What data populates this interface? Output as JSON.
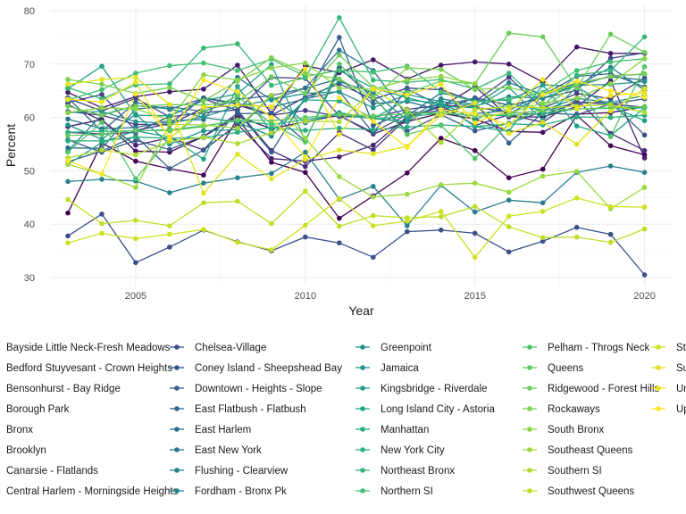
{
  "chart_data": {
    "type": "line",
    "xlabel": "Year",
    "ylabel": "Percent",
    "xlim": [
      2002.5,
      2020.8
    ],
    "ylim": [
      28.5,
      81
    ],
    "x_ticks": [
      2005,
      2010,
      2015,
      2020
    ],
    "y_ticks": [
      30,
      40,
      50,
      60,
      70,
      80
    ],
    "grid": true,
    "legend_position": "bottom",
    "x": [
      2003,
      2004,
      2005,
      2006,
      2007,
      2008,
      2009,
      2010,
      2011,
      2012,
      2013,
      2014,
      2015,
      2016,
      2017,
      2018,
      2019,
      2020
    ],
    "series": [
      {
        "name": "Bayside Little Neck-Fresh Meadows",
        "color": "#440154",
        "values": [
          42.1,
          55.2,
          51.8,
          50.4,
          49.2,
          59.8,
          51.6,
          49.7,
          41.1,
          45.3,
          49.6,
          56.1,
          53.8,
          48.7,
          50.3,
          60.4,
          54.7,
          53.0
        ]
      },
      {
        "name": "Bedford Stuyvesant - Crown Heights",
        "color": "#450a5c",
        "values": [
          58.3,
          59.6,
          53.7,
          53.5,
          56.4,
          60.2,
          57.9,
          59.2,
          60.4,
          56.9,
          59.2,
          60.8,
          59.7,
          57.4,
          57.2,
          60.6,
          60.9,
          62.0
        ]
      },
      {
        "name": "Bensonhurst - Bay Ridge",
        "color": "#461667",
        "values": [
          64.7,
          61.8,
          63.9,
          64.8,
          65.3,
          69.8,
          60.7,
          69.7,
          68.4,
          70.8,
          67.2,
          69.8,
          70.4,
          70.0,
          66.6,
          73.2,
          72.0,
          72.0
        ]
      },
      {
        "name": "Borough Park",
        "color": "#462371",
        "values": [
          62.4,
          59.4,
          54.8,
          56.2,
          53.9,
          58.7,
          52.3,
          51.8,
          52.6,
          54.8,
          60.1,
          62.0,
          65.8,
          60.1,
          60.1,
          62.0,
          66.9,
          52.4
        ]
      },
      {
        "name": "Bronx",
        "color": "#472e7c",
        "values": [
          57.2,
          56.9,
          57.2,
          60.2,
          63.5,
          61.3,
          53.8,
          50.8,
          57.1,
          53.9,
          59.9,
          62.2,
          58.5,
          60.5,
          59.1,
          63.4,
          57.0,
          53.8
        ]
      },
      {
        "name": "Brooklyn",
        "color": "#453781",
        "values": [
          61.1,
          60.4,
          58.7,
          58.6,
          61.8,
          62.3,
          60.4,
          61.3,
          60.2,
          60.0,
          61.5,
          62.3,
          61.9,
          61.0,
          60.5,
          62.8,
          62.5,
          61.9
        ]
      },
      {
        "name": "Canarsie - Flatlands",
        "color": "#433e85",
        "values": [
          62.8,
          64.3,
          57.6,
          58.8,
          63.7,
          62.6,
          60.4,
          63.8,
          66.3,
          63.4,
          65.5,
          65.2,
          63.0,
          67.5,
          61.7,
          64.5,
          63.5,
          67.4
        ]
      },
      {
        "name": "Central Harlem - Morningside Heights",
        "color": "#404688",
        "values": [
          63.6,
          61.2,
          63.6,
          60.1,
          60.9,
          61.4,
          67.5,
          67.3,
          60.3,
          57.2,
          60.5,
          61.3,
          63.7,
          62.3,
          63.6,
          65.1,
          71.1,
          72.1
        ]
      },
      {
        "name": "Chelsea-Village",
        "color": "#3c4f8a",
        "values": [
          37.8,
          41.9,
          32.8,
          35.7,
          38.9,
          36.7,
          35.0,
          37.6,
          36.5,
          33.8,
          38.6,
          38.9,
          38.3,
          34.8,
          36.8,
          39.4,
          38.1,
          30.5
        ]
      },
      {
        "name": "Coney Island - Sheepshead Bay",
        "color": "#39568c",
        "values": [
          55.8,
          53.5,
          55.7,
          54.0,
          56.5,
          60.7,
          60.8,
          55.6,
          69.3,
          63.7,
          57.4,
          60.5,
          57.5,
          58.9,
          61.1,
          62.8,
          62.9,
          56.7
        ]
      },
      {
        "name": "Downtown - Heights - Slope",
        "color": "#355f8d",
        "values": [
          51.7,
          53.7,
          56.5,
          50.4,
          53.9,
          61.0,
          53.5,
          63.8,
          75.0,
          58.5,
          61.1,
          60.6,
          62.8,
          55.2,
          60.9,
          60.5,
          62.5,
          63.5
        ]
      },
      {
        "name": "East Flatbush - Flatbush",
        "color": "#31668e",
        "values": [
          63.7,
          57.4,
          62.8,
          61.5,
          63.6,
          62.5,
          61.9,
          63.5,
          64.9,
          57.1,
          65.3,
          62.2,
          63.6,
          60.6,
          64.2,
          67.7,
          68.2,
          65.7
        ]
      },
      {
        "name": "East Harlem",
        "color": "#2e6e8e",
        "values": [
          54.3,
          54.2,
          61.6,
          62.0,
          61.1,
          63.4,
          64.1,
          65.5,
          67.2,
          62.6,
          63.0,
          61.3,
          60.7,
          61.3,
          64.5,
          66.4,
          67.6,
          67.0
        ]
      },
      {
        "name": "East New York",
        "color": "#2a768e",
        "values": [
          59.7,
          57.9,
          58.1,
          59.4,
          59.6,
          67.5,
          63.3,
          65.5,
          72.6,
          68.8,
          60.3,
          64.6,
          63.2,
          63.2,
          66.1,
          65.8,
          67.8,
          68.1
        ]
      },
      {
        "name": "Flushing - Clearview",
        "color": "#277f8e",
        "values": [
          48.0,
          48.4,
          48.1,
          45.9,
          47.7,
          48.7,
          49.5,
          53.5,
          44.7,
          47.1,
          39.7,
          47.3,
          42.3,
          44.5,
          44.0,
          49.7,
          50.9,
          49.7
        ]
      },
      {
        "name": "Fordham - Bronx Pk",
        "color": "#24868e",
        "values": [
          53.7,
          60.5,
          62.2,
          61.6,
          60.0,
          59.1,
          56.5,
          63.3,
          66.7,
          64.7,
          59.5,
          63.5,
          62.4,
          66.5,
          64.3,
          65.9,
          69.4,
          65.1
        ]
      },
      {
        "name": "Greenpoint",
        "color": "#21908d",
        "values": [
          60.9,
          61.1,
          59.2,
          58.9,
          60.1,
          62.1,
          63.3,
          64.5,
          64.8,
          61.8,
          64.3,
          63.0,
          62.1,
          63.9,
          63.6,
          66.0,
          66.2,
          66.7
        ]
      },
      {
        "name": "Jamaica",
        "color": "#1f968b",
        "values": [
          58.6,
          55.9,
          60.6,
          55.0,
          57.5,
          57.7,
          64.1,
          59.0,
          60.9,
          59.8,
          59.2,
          62.8,
          59.5,
          62.7,
          61.3,
          63.6,
          62.8,
          64.1
        ]
      },
      {
        "name": "Kingsbridge - Riverdale",
        "color": "#1fa088",
        "values": [
          65.4,
          69.6,
          60.4,
          60.3,
          63.2,
          64.4,
          69.9,
          55.7,
          68.8,
          65.5,
          63.7,
          62.1,
          61.8,
          65.6,
          59.5,
          65.7,
          62.1,
          59.4
        ]
      },
      {
        "name": "Long Island City - Astoria",
        "color": "#20a486",
        "values": [
          51.2,
          55.3,
          57.5,
          56.3,
          52.2,
          65.8,
          57.3,
          63.3,
          63.1,
          59.8,
          63.3,
          62.6,
          58.3,
          57.4,
          66.1,
          58.4,
          56.6,
          61.8
        ]
      },
      {
        "name": "Manhattan",
        "color": "#27ad81",
        "values": [
          55.6,
          55.6,
          56.3,
          56.1,
          56.2,
          57.2,
          58.1,
          57.6,
          58.0,
          57.7,
          58.2,
          58.6,
          58.3,
          58.8,
          58.6,
          60.1,
          60.0,
          60.4
        ]
      },
      {
        "name": "New York City",
        "color": "#2db27d",
        "values": [
          57.2,
          57.4,
          57.5,
          57.7,
          58.4,
          59.4,
          58.7,
          59.6,
          60.5,
          59.8,
          60.1,
          60.8,
          60.3,
          60.4,
          60.7,
          61.6,
          61.7,
          61.8
        ]
      },
      {
        "name": "Northeast Bronx",
        "color": "#37b878",
        "values": [
          65.6,
          63.5,
          66.1,
          66.3,
          73.0,
          73.8,
          66.0,
          67.4,
          78.7,
          67.0,
          66.6,
          67.1,
          65.3,
          68.3,
          62.2,
          67.9,
          68.8,
          75.1
        ]
      },
      {
        "name": "Northern SI",
        "color": "#43bf71",
        "values": [
          63.3,
          65.2,
          68.3,
          69.7,
          70.2,
          68.8,
          70.9,
          67.7,
          68.8,
          68.5,
          69.6,
          64.8,
          62.9,
          63.4,
          64.7,
          68.8,
          70.4,
          71.0
        ]
      },
      {
        "name": "Pelham - Throgs Neck",
        "color": "#52c569",
        "values": [
          53.5,
          59.1,
          48.5,
          56.1,
          61.1,
          64.0,
          58.8,
          55.4,
          70.0,
          63.9,
          56.8,
          58.5,
          52.3,
          58.8,
          61.8,
          66.2,
          56.4,
          69.5
        ]
      },
      {
        "name": "Queens",
        "color": "#60ca60",
        "values": [
          56.6,
          56.8,
          57.6,
          57.5,
          58.3,
          59.6,
          59.4,
          60.0,
          60.6,
          60.3,
          60.7,
          60.9,
          60.3,
          60.7,
          61.3,
          61.6,
          61.8,
          62.0
        ]
      },
      {
        "name": "Ridgewood - Forest Hills",
        "color": "#6ccd5a",
        "values": [
          62.1,
          60.4,
          62.1,
          62.4,
          62.3,
          63.0,
          67.6,
          64.5,
          71.7,
          65.7,
          64.6,
          66.8,
          66.3,
          75.8,
          75.1,
          65.5,
          75.6,
          72.2
        ]
      },
      {
        "name": "Rockaways",
        "color": "#7ad151",
        "values": [
          67.1,
          66.2,
          64.5,
          65.6,
          63.1,
          66.8,
          71.2,
          68.3,
          67.2,
          63.7,
          69.3,
          69.0,
          65.2,
          65.6,
          64.2,
          66.2,
          67.7,
          68.2
        ]
      },
      {
        "name": "South Bronx",
        "color": "#8bd646",
        "values": [
          60.9,
          61.8,
          61.6,
          59.5,
          68.0,
          67.0,
          69.3,
          70.2,
          65.5,
          65.3,
          67.0,
          67.7,
          66.3,
          60.8,
          62.7,
          63.6,
          66.3,
          71.0
        ]
      },
      {
        "name": "Southeast Queens",
        "color": "#9bd93c",
        "values": [
          51.2,
          49.4,
          46.9,
          58.7,
          58.6,
          58.0,
          64.2,
          56.1,
          48.9,
          45.1,
          45.6,
          47.4,
          47.7,
          46.0,
          49.0,
          49.9,
          42.9,
          46.9
        ]
      },
      {
        "name": "Southern SI",
        "color": "#addc30",
        "values": [
          52.4,
          53.9,
          53.0,
          55.5,
          56.3,
          55.1,
          57.1,
          59.3,
          59.2,
          65.2,
          61.4,
          55.3,
          61.5,
          62.0,
          61.8,
          62.1,
          62.4,
          60.9
        ]
      },
      {
        "name": "Southwest Queens",
        "color": "#bddf26",
        "values": [
          44.6,
          40.1,
          40.7,
          39.7,
          44.0,
          44.3,
          40.1,
          46.2,
          39.6,
          41.6,
          41.2,
          41.4,
          43.3,
          39.5,
          37.5,
          37.6,
          36.6,
          39.1
        ]
      },
      {
        "name": "Stapleton - St. George",
        "color": "#cde11d",
        "values": [
          36.5,
          38.3,
          37.3,
          38.1,
          39.0,
          36.6,
          35.2,
          39.8,
          44.8,
          39.7,
          40.6,
          42.4,
          33.8,
          41.5,
          42.4,
          44.9,
          43.3,
          43.2
        ]
      },
      {
        "name": "Sunset Park",
        "color": "#dfe318",
        "values": [
          66.2,
          67.1,
          67.5,
          62.4,
          45.8,
          53.1,
          48.5,
          52.1,
          53.9,
          53.2,
          54.6,
          60.4,
          62.7,
          57.0,
          59.1,
          55.0,
          61.2,
          65.4
        ]
      },
      {
        "name": "Union Square - Lower East Side",
        "color": "#eee51c",
        "values": [
          63.4,
          62.9,
          66.6,
          56.0,
          61.9,
          62.3,
          62.0,
          69.1,
          56.8,
          65.4,
          64.2,
          66.2,
          59.0,
          61.4,
          67.1,
          61.7,
          64.1,
          64.6
        ]
      },
      {
        "name": "Upper East Side",
        "color": "#fde725",
        "values": [
          51.9,
          49.4,
          64.4,
          56.3,
          67.0,
          64.8,
          60.0,
          52.6,
          63.7,
          59.3,
          54.4,
          61.4,
          60.7,
          58.6,
          64.3,
          66.8,
          65.0,
          63.8
        ]
      }
    ]
  }
}
